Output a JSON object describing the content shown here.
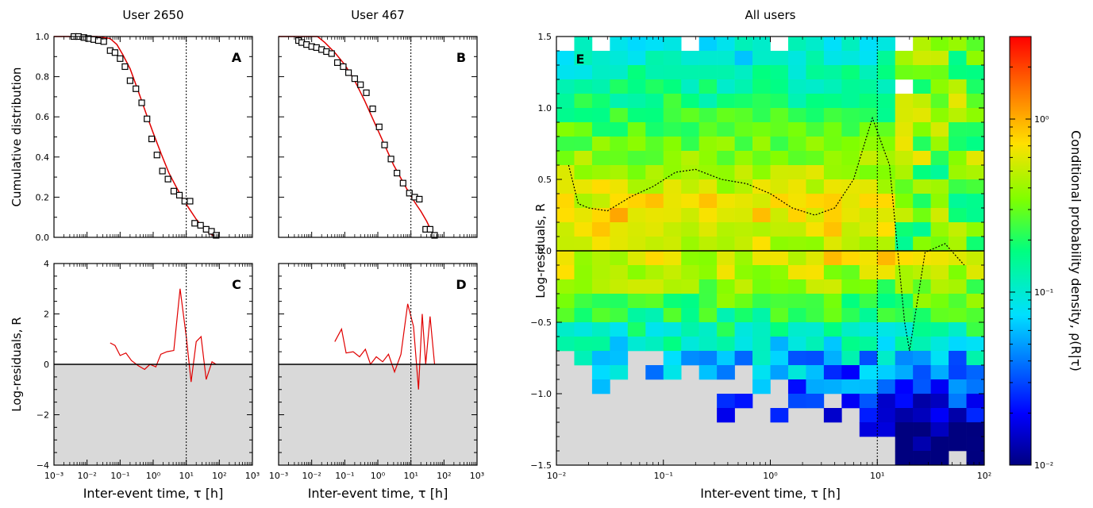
{
  "chart_data": [
    {
      "panel": "A",
      "type": "scatter",
      "title": "User 2650",
      "ylabel": "Cumulative distribution",
      "xscale": "log",
      "xlim": [
        0.001,
        1000
      ],
      "ylim": [
        0,
        1
      ],
      "yticks": [
        "0.0",
        "0.2",
        "0.4",
        "0.6",
        "0.8",
        "1.0"
      ],
      "vline_x": 10,
      "series": [
        {
          "kind": "points",
          "x": [
            0.004,
            0.0055,
            0.008,
            0.011,
            0.016,
            0.022,
            0.032,
            0.05,
            0.07,
            0.1,
            0.14,
            0.2,
            0.3,
            0.45,
            0.65,
            0.9,
            1.3,
            1.9,
            2.8,
            4.2,
            6.2,
            9,
            13,
            18,
            27,
            40,
            58,
            80
          ],
          "y": [
            1.0,
            1.0,
            0.995,
            0.99,
            0.985,
            0.98,
            0.975,
            0.93,
            0.92,
            0.89,
            0.85,
            0.78,
            0.74,
            0.67,
            0.59,
            0.49,
            0.41,
            0.33,
            0.29,
            0.23,
            0.21,
            0.18,
            0.18,
            0.07,
            0.06,
            0.04,
            0.03,
            0.01
          ]
        },
        {
          "kind": "fit",
          "x": [
            0.001,
            0.005,
            0.02,
            0.05,
            0.08,
            0.12,
            0.2,
            0.35,
            0.6,
            1,
            1.8,
            3,
            5,
            8,
            12,
            20,
            30,
            50,
            80
          ],
          "y": [
            1.0,
            1.0,
            1.0,
            0.99,
            0.96,
            0.91,
            0.84,
            0.73,
            0.62,
            0.52,
            0.41,
            0.32,
            0.25,
            0.19,
            0.145,
            0.09,
            0.055,
            0.02,
            0.0
          ]
        }
      ]
    },
    {
      "panel": "B",
      "type": "scatter",
      "title": "User 467",
      "xscale": "log",
      "xlim": [
        0.001,
        1000
      ],
      "ylim": [
        0,
        1
      ],
      "vline_x": 10,
      "series": [
        {
          "kind": "points",
          "x": [
            0.004,
            0.005,
            0.007,
            0.01,
            0.014,
            0.02,
            0.028,
            0.04,
            0.06,
            0.09,
            0.13,
            0.2,
            0.3,
            0.45,
            0.7,
            1.1,
            1.6,
            2.5,
            3.8,
            5.8,
            9,
            13,
            18,
            28,
            38,
            52
          ],
          "y": [
            0.98,
            0.97,
            0.96,
            0.95,
            0.945,
            0.935,
            0.925,
            0.915,
            0.87,
            0.85,
            0.82,
            0.79,
            0.76,
            0.72,
            0.64,
            0.55,
            0.46,
            0.39,
            0.32,
            0.27,
            0.22,
            0.2,
            0.19,
            0.04,
            0.04,
            0.01
          ]
        },
        {
          "kind": "fit",
          "x": [
            0.001,
            0.005,
            0.01,
            0.015,
            0.025,
            0.05,
            0.1,
            0.2,
            0.4,
            0.8,
            1.5,
            3,
            6,
            10,
            15,
            20,
            30,
            45,
            55
          ],
          "y": [
            1.0,
            1.0,
            1.0,
            1.0,
            0.97,
            0.92,
            0.86,
            0.78,
            0.68,
            0.57,
            0.47,
            0.36,
            0.27,
            0.205,
            0.16,
            0.13,
            0.08,
            0.02,
            0.0
          ]
        }
      ]
    },
    {
      "panel": "C",
      "type": "line",
      "ylabel": "Log-residuals, R",
      "xlabel": "Inter-event time, τ [h]",
      "xscale": "log",
      "xlim": [
        0.001,
        1000
      ],
      "ylim": [
        -4,
        4
      ],
      "yticks": [
        "−4",
        "−2",
        "0",
        "2",
        "4"
      ],
      "xticks": [
        "10⁻³",
        "10⁻²",
        "10⁻¹",
        "10⁰",
        "10¹",
        "10²",
        "10³"
      ],
      "vline_x": 10,
      "hline_y": 0,
      "x": [
        0.05,
        0.07,
        0.1,
        0.15,
        0.22,
        0.35,
        0.55,
        0.8,
        1.2,
        1.7,
        2.6,
        4.2,
        6.5,
        10,
        14,
        20,
        28,
        40,
        60,
        80
      ],
      "y": [
        0.85,
        0.75,
        0.35,
        0.45,
        0.15,
        -0.05,
        -0.2,
        0.0,
        -0.1,
        0.4,
        0.5,
        0.55,
        3.0,
        1.1,
        -0.7,
        0.9,
        1.1,
        -0.6,
        0.1,
        0.0
      ]
    },
    {
      "panel": "D",
      "type": "line",
      "xlabel": "Inter-event time, τ [h]",
      "xscale": "log",
      "xlim": [
        0.001,
        1000
      ],
      "ylim": [
        -4,
        4
      ],
      "xticks": [
        "10⁻³",
        "10⁻²",
        "10⁻¹",
        "10⁰",
        "10¹",
        "10²",
        "10³"
      ],
      "vline_x": 10,
      "hline_y": 0,
      "x": [
        0.05,
        0.08,
        0.11,
        0.18,
        0.28,
        0.42,
        0.6,
        0.9,
        1.4,
        2.1,
        3.2,
        5,
        8,
        12,
        17,
        22,
        28,
        38,
        52
      ],
      "y": [
        0.9,
        1.4,
        0.45,
        0.5,
        0.3,
        0.6,
        0.0,
        0.3,
        0.1,
        0.4,
        -0.3,
        0.4,
        2.4,
        1.5,
        -1.0,
        2.0,
        0.0,
        1.9,
        0.0
      ]
    },
    {
      "panel": "E",
      "type": "heatmap",
      "title": "All users",
      "xlabel": "Inter-event time, τ [h]",
      "ylabel": "Log-residuals, R",
      "xscale": "log",
      "xlim": [
        0.01,
        100
      ],
      "ylim": [
        -1.5,
        1.5
      ],
      "xticks": [
        "10⁻²",
        "10⁻¹",
        "10⁰",
        "10¹",
        "10²"
      ],
      "yticks": [
        "−1.5",
        "−1.0",
        "−0.5",
        "0.0",
        "0.5",
        "1.0",
        "1.5"
      ],
      "vline_x": 10,
      "hline_y": 0,
      "colorbar": {
        "label": "Conditional probability density, ρ(R|τ)",
        "scale": "log",
        "range": [
          0.01,
          3
        ],
        "ticks": [
          "10⁰",
          "10⁻¹",
          "10⁻²"
        ]
      },
      "colors": {
        "heatmap_positive": "#4fe040",
        "heatmap_warm": "#f2b21d",
        "negative_region": "#d9d9d9"
      },
      "trend": {
        "x": [
          0.013,
          0.016,
          0.02,
          0.03,
          0.05,
          0.08,
          0.13,
          0.2,
          0.35,
          0.6,
          1,
          1.6,
          2.6,
          4,
          6,
          9,
          13,
          18,
          20,
          28,
          43,
          65
        ],
        "y": [
          0.6,
          0.33,
          0.3,
          0.28,
          0.38,
          0.45,
          0.55,
          0.57,
          0.5,
          0.47,
          0.4,
          0.3,
          0.25,
          0.3,
          0.5,
          0.93,
          0.6,
          -0.5,
          -0.7,
          -0.01,
          0.05,
          -0.1
        ]
      }
    }
  ]
}
